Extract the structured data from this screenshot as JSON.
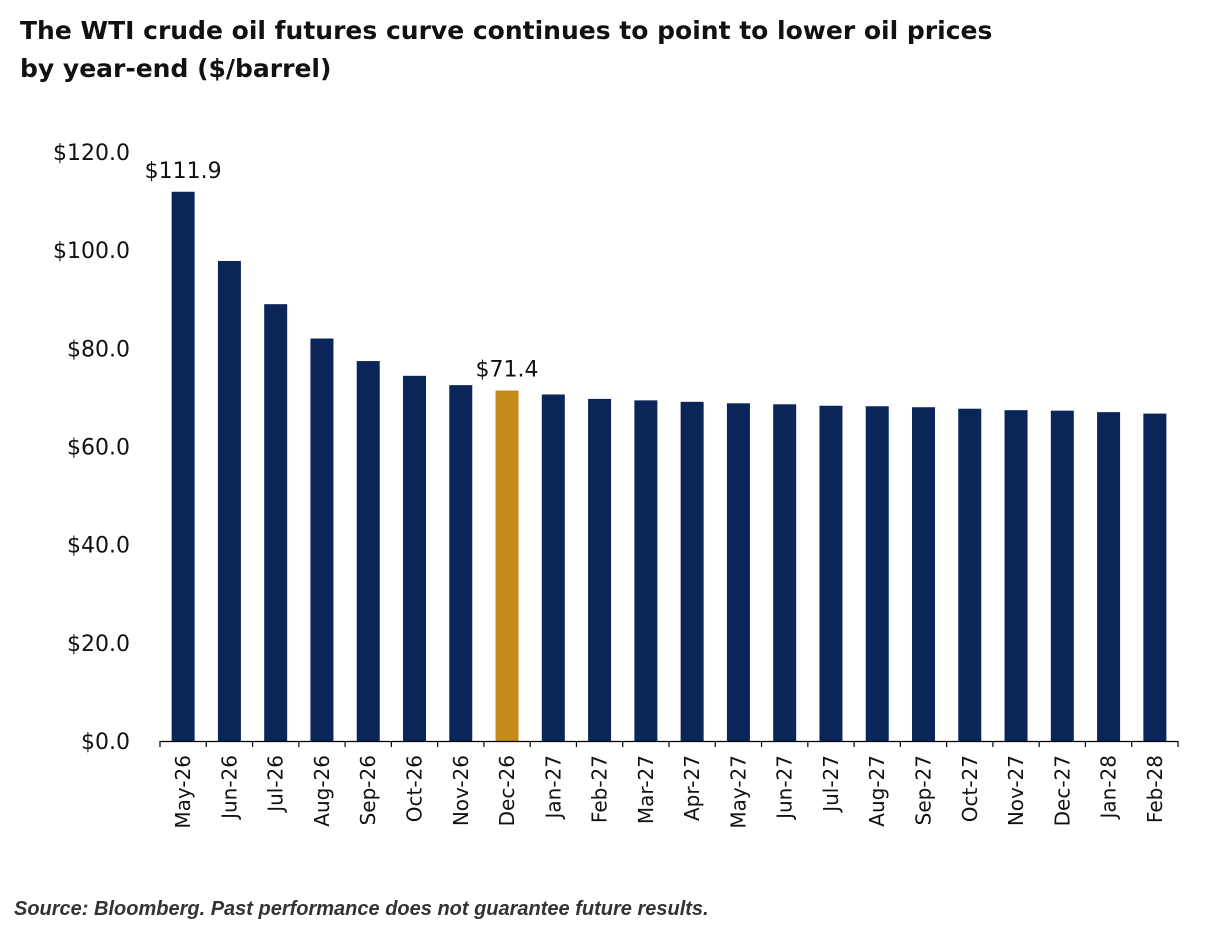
{
  "title": "The WTI crude oil futures curve continues to point to lower oil prices by year-end ($/barrel)",
  "source": "Source: Bloomberg. Past performance does not guarantee future results.",
  "colors": {
    "bar": "#0b2559",
    "highlight": "#c48a1c",
    "axis": "#000000"
  },
  "chart_data": {
    "type": "bar",
    "title": "The WTI crude oil futures curve continues to point to lower oil prices by year-end ($/barrel)",
    "xlabel": "",
    "ylabel": "",
    "ylim": [
      0,
      120
    ],
    "yticks": [
      0,
      20,
      40,
      60,
      80,
      100,
      120
    ],
    "ytick_labels": [
      "$0.0",
      "$20.0",
      "$40.0",
      "$60.0",
      "$80.0",
      "$100.0",
      "$120.0"
    ],
    "categories": [
      "May-26",
      "Jun-26",
      "Jul-26",
      "Aug-26",
      "Sep-26",
      "Oct-26",
      "Nov-26",
      "Dec-26",
      "Jan-27",
      "Feb-27",
      "Mar-27",
      "Apr-27",
      "May-27",
      "Jun-27",
      "Jul-27",
      "Aug-27",
      "Sep-27",
      "Oct-27",
      "Nov-27",
      "Dec-27",
      "Jan-28",
      "Feb-28"
    ],
    "values": [
      111.9,
      97.8,
      89.0,
      82.0,
      77.4,
      74.4,
      72.5,
      71.4,
      70.6,
      69.7,
      69.4,
      69.1,
      68.8,
      68.6,
      68.3,
      68.2,
      68.0,
      67.7,
      67.4,
      67.3,
      67.0,
      66.7
    ],
    "highlight_index": 7,
    "grid": false,
    "data_labels": [
      {
        "index": 0,
        "text": "$111.9"
      },
      {
        "index": 7,
        "text": "$71.4"
      }
    ]
  }
}
